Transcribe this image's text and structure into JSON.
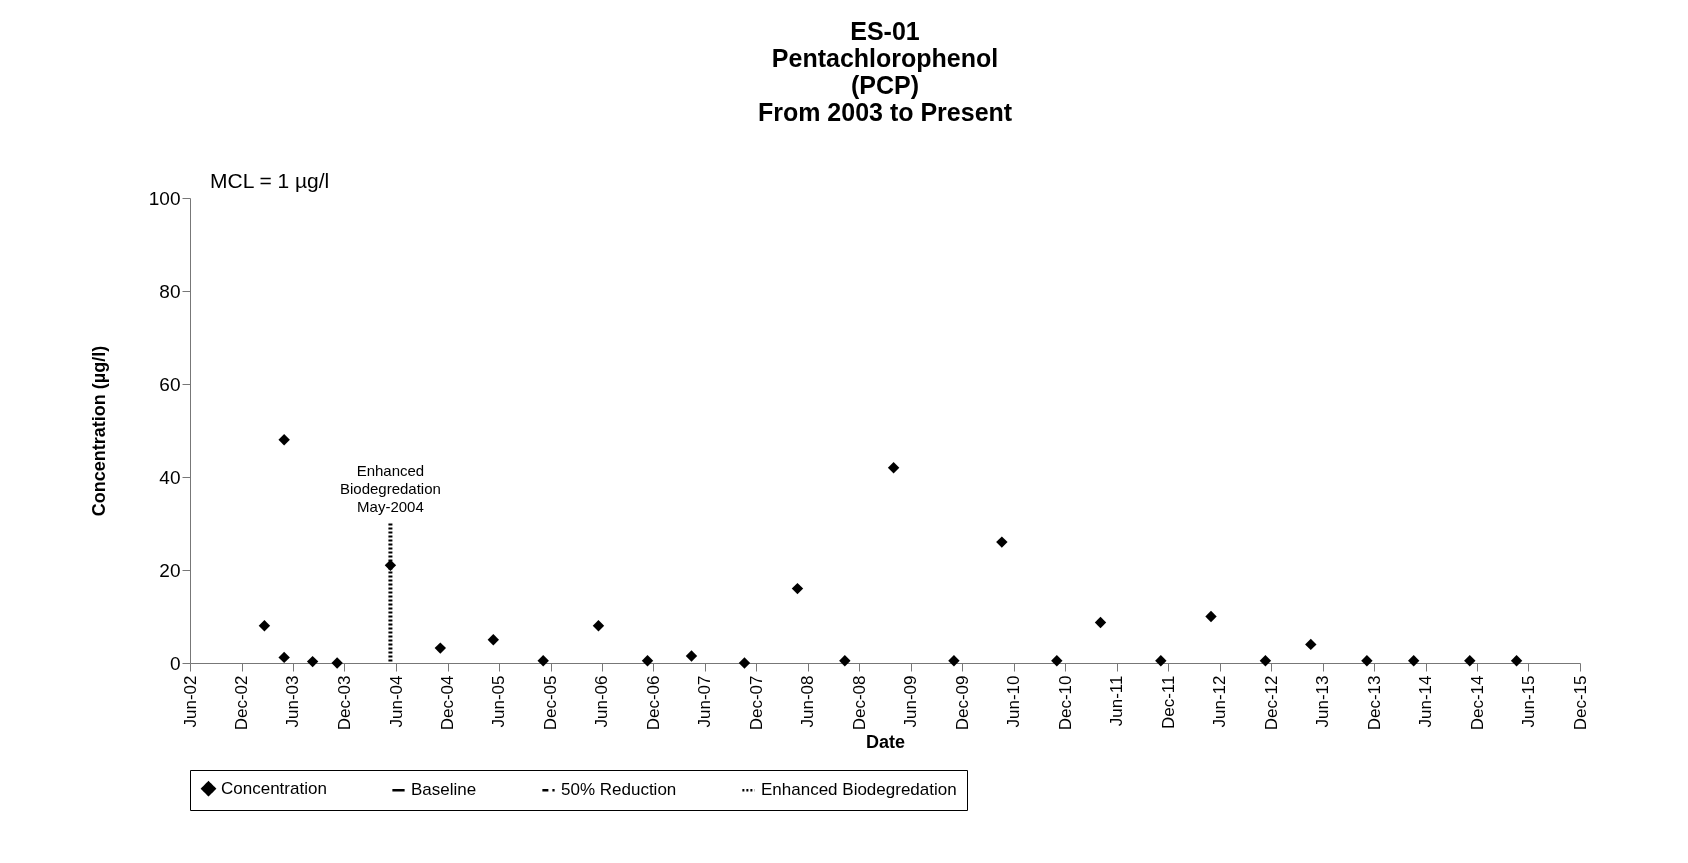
{
  "chart_data": {
    "type": "scatter",
    "title": [
      "ES-01",
      "Pentachlorophenol",
      "(PCP)",
      "From 2003 to Present"
    ],
    "xlabel": "Date",
    "ylabel": "Concentration (µg/l)",
    "x": [
      "2003-02-20",
      "2003-05-01",
      "2003-05-01",
      "2003-08-10",
      "2003-11-05",
      "2004-05-12",
      "2004-11-05",
      "2005-05-12",
      "2005-11-05",
      "2006-05-20",
      "2006-11-10",
      "2007-04-15",
      "2007-10-20",
      "2008-04-25",
      "2008-10-10",
      "2009-04-01",
      "2009-11-01",
      "2010-04-20",
      "2010-11-01",
      "2011-04-05",
      "2011-11-05",
      "2012-05-01",
      "2012-11-10",
      "2013-04-20",
      "2013-11-05",
      "2014-04-20",
      "2014-11-05",
      "2015-04-20"
    ],
    "series": [
      {
        "name": "Concentration",
        "marker": "diamond",
        "color": "#000000",
        "values": [
          8,
          48,
          1.2,
          0.3,
          0,
          21,
          3.2,
          5,
          0.5,
          8,
          0.5,
          1.5,
          0,
          16,
          0.5,
          42,
          0.5,
          26,
          0.5,
          8.7,
          0.5,
          10,
          0.5,
          4,
          0.5,
          0.5,
          0.5,
          0.5
        ]
      },
      {
        "name": "Baseline",
        "type": "line",
        "line_style": "solid",
        "color": "#000000",
        "values": [
          null,
          null,
          null,
          null,
          null,
          null,
          null,
          null,
          null,
          null,
          null,
          null,
          null,
          null,
          null,
          null,
          null,
          null,
          null,
          null,
          null,
          null,
          null,
          null,
          null,
          null,
          null,
          null
        ]
      },
      {
        "name": "50% Reduction",
        "type": "line",
        "line_style": "dashed",
        "color": "#000000",
        "values": [
          null,
          null,
          null,
          null,
          null,
          null,
          null,
          null,
          null,
          null,
          null,
          null,
          null,
          null,
          null,
          null,
          null,
          null,
          null,
          null,
          null,
          null,
          null,
          null,
          null,
          null,
          null,
          null
        ]
      },
      {
        "name": "Enhanced Biodegredation",
        "type": "line",
        "line_style": "dotted",
        "color": "#000000",
        "x": [
          "2004-05-12",
          "2004-05-12"
        ],
        "values": [
          30,
          0
        ]
      }
    ],
    "xlim": [
      "2002-06",
      "2015-12"
    ],
    "xticks": [
      {
        "value": "2002-06",
        "label": "Jun-02"
      },
      {
        "value": "2002-12",
        "label": "Dec-02"
      },
      {
        "value": "2003-06",
        "label": "Jun-03"
      },
      {
        "value": "2003-12",
        "label": "Dec-03"
      },
      {
        "value": "2004-06",
        "label": "Jun-04"
      },
      {
        "value": "2004-12",
        "label": "Dec-04"
      },
      {
        "value": "2005-06",
        "label": "Jun-05"
      },
      {
        "value": "2005-12",
        "label": "Dec-05"
      },
      {
        "value": "2006-06",
        "label": "Jun-06"
      },
      {
        "value": "2006-12",
        "label": "Dec-06"
      },
      {
        "value": "2007-06",
        "label": "Jun-07"
      },
      {
        "value": "2007-12",
        "label": "Dec-07"
      },
      {
        "value": "2008-06",
        "label": "Jun-08"
      },
      {
        "value": "2008-12",
        "label": "Dec-08"
      },
      {
        "value": "2009-06",
        "label": "Jun-09"
      },
      {
        "value": "2009-12",
        "label": "Dec-09"
      },
      {
        "value": "2010-06",
        "label": "Jun-10"
      },
      {
        "value": "2010-12",
        "label": "Dec-10"
      },
      {
        "value": "2011-06",
        "label": "Jun-11"
      },
      {
        "value": "2011-12",
        "label": "Dec-11"
      },
      {
        "value": "2012-06",
        "label": "Jun-12"
      },
      {
        "value": "2012-12",
        "label": "Dec-12"
      },
      {
        "value": "2013-06",
        "label": "Jun-13"
      },
      {
        "value": "2013-12",
        "label": "Dec-13"
      },
      {
        "value": "2014-06",
        "label": "Jun-14"
      },
      {
        "value": "2014-12",
        "label": "Dec-14"
      },
      {
        "value": "2015-06",
        "label": "Jun-15"
      },
      {
        "value": "2015-12",
        "label": "Dec-15"
      }
    ],
    "ylim": [
      0,
      100
    ],
    "yticks": [
      0,
      20,
      40,
      60,
      80,
      100
    ],
    "grid": false,
    "legend": "bottom",
    "annotations": [
      "MCL = 1 µg/l",
      {
        "text": "Enhanced\nBiodegredation\nMay-2004",
        "x": "2004-05-12",
        "y": 30
      }
    ]
  }
}
